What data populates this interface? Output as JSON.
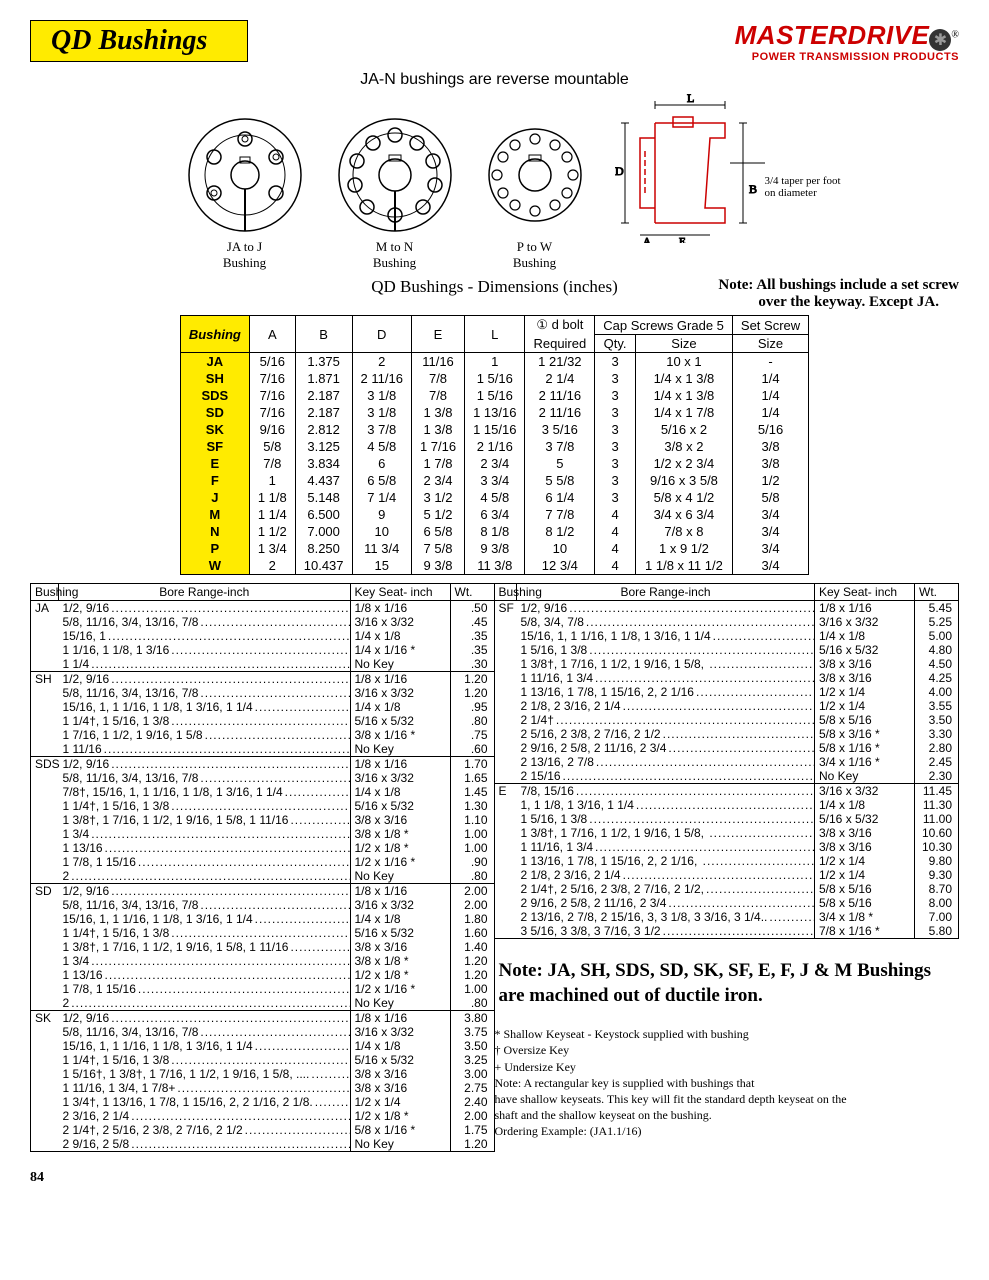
{
  "page": {
    "title": "QD Bushings",
    "number": "84"
  },
  "logo": {
    "brand": "MASTERDRIVE",
    "tagline": "POWER TRANSMISSION PRODUCTS"
  },
  "subhead": "JA-N bushings are reverse mountable",
  "diagrams": {
    "items": [
      {
        "label": "JA to J",
        "sub": "Bushing"
      },
      {
        "label": "M to N",
        "sub": "Bushing"
      },
      {
        "label": "P to W",
        "sub": "Bushing"
      }
    ],
    "taper_note": "3/4 taper per foot on diameter",
    "dim_labels": {
      "L": "L",
      "B": "B",
      "D": "D",
      "A": "A",
      "E": "E"
    }
  },
  "caption": "QD Bushings - Dimensions (inches)",
  "note_right_1": "Note: All bushings include a set screw",
  "note_right_2": "over the keyway.  Except JA.",
  "dims_header": {
    "bushing": "Bushing",
    "A": "A",
    "B": "B",
    "D": "D",
    "E": "E",
    "L": "L",
    "bolt_top": "① d bolt",
    "bolt": "Required",
    "cap": "Cap Screws Grade 5",
    "qty": "Qty.",
    "size": "Size",
    "set": "Set Screw",
    "setsize": "Size"
  },
  "dims_rows": [
    {
      "b": "JA",
      "A": "5/16",
      "B": "1.375",
      "D": "2",
      "E": "11/16",
      "L": "1",
      "bolt": "1 21/32",
      "qty": "3",
      "size": "10 x 1",
      "set": "-"
    },
    {
      "b": "SH",
      "A": "7/16",
      "B": "1.871",
      "D": "2 11/16",
      "E": "7/8",
      "L": "1 5/16",
      "bolt": "2 1/4",
      "qty": "3",
      "size": "1/4 x 1 3/8",
      "set": "1/4"
    },
    {
      "b": "SDS",
      "A": "7/16",
      "B": "2.187",
      "D": "3 1/8",
      "E": "7/8",
      "L": "1 5/16",
      "bolt": "2 11/16",
      "qty": "3",
      "size": "1/4 x 1 3/8",
      "set": "1/4"
    },
    {
      "b": "SD",
      "A": "7/16",
      "B": "2.187",
      "D": "3 1/8",
      "E": "1 3/8",
      "L": "1 13/16",
      "bolt": "2 11/16",
      "qty": "3",
      "size": "1/4 x 1 7/8",
      "set": "1/4"
    },
    {
      "b": "SK",
      "A": "9/16",
      "B": "2.812",
      "D": "3 7/8",
      "E": "1 3/8",
      "L": "1 15/16",
      "bolt": "3 5/16",
      "qty": "3",
      "size": "5/16 x 2",
      "set": "5/16"
    },
    {
      "b": "SF",
      "A": "5/8",
      "B": "3.125",
      "D": "4 5/8",
      "E": "1 7/16",
      "L": "2 1/16",
      "bolt": "3 7/8",
      "qty": "3",
      "size": "3/8 x 2",
      "set": "3/8"
    },
    {
      "b": "E",
      "A": "7/8",
      "B": "3.834",
      "D": "6",
      "E": "1 7/8",
      "L": "2 3/4",
      "bolt": "5",
      "qty": "3",
      "size": "1/2 x 2 3/4",
      "set": "3/8"
    },
    {
      "b": "F",
      "A": "1",
      "B": "4.437",
      "D": "6 5/8",
      "E": "2 3/4",
      "L": "3 3/4",
      "bolt": "5 5/8",
      "qty": "3",
      "size": "9/16 x 3 5/8",
      "set": "1/2"
    },
    {
      "b": "J",
      "A": "1 1/8",
      "B": "5.148",
      "D": "7 1/4",
      "E": "3 1/2",
      "L": "4 5/8",
      "bolt": "6 1/4",
      "qty": "3",
      "size": "5/8 x 4 1/2",
      "set": "5/8"
    },
    {
      "b": "M",
      "A": "1 1/4",
      "B": "6.500",
      "D": "9",
      "E": "5 1/2",
      "L": "6 3/4",
      "bolt": "7 7/8",
      "qty": "4",
      "size": "3/4 x 6 3/4",
      "set": "3/4"
    },
    {
      "b": "N",
      "A": "1 1/2",
      "B": "7.000",
      "D": "10",
      "E": "6 5/8",
      "L": "8 1/8",
      "bolt": "8 1/2",
      "qty": "4",
      "size": "7/8 x 8",
      "set": "3/4"
    },
    {
      "b": "P",
      "A": "1 3/4",
      "B": "8.250",
      "D": "11 3/4",
      "E": "7 5/8",
      "L": "9 3/8",
      "bolt": "10",
      "qty": "4",
      "size": "1 x 9 1/2",
      "set": "3/4"
    },
    {
      "b": "W",
      "A": "2",
      "B": "10.437",
      "D": "15",
      "E": "9 3/8",
      "L": "11 3/8",
      "bolt": "12 3/4",
      "qty": "4",
      "size": "1 1/8 x 11 1/2",
      "set": "3/4"
    }
  ],
  "bore_header": {
    "bushing": "Bushing",
    "bore": "Bore Range-inch",
    "key": "Key Seat- inch",
    "wt": "Wt."
  },
  "bore_left": [
    {
      "id": "JA",
      "rows": [
        {
          "bore": "1/2, 9/16",
          "key": "1/8  x  1/16",
          "wt": ".50"
        },
        {
          "bore": "5/8, 11/16, 3/4, 13/16, 7/8",
          "key": "3/16  x  3/32",
          "wt": ".45"
        },
        {
          "bore": "15/16, 1",
          "key": "1/4  x  1/8",
          "wt": ".35"
        },
        {
          "bore": "1 1/16, 1 1/8, 1 3/16",
          "key": "1/4  x  1/16  *",
          "wt": ".35"
        },
        {
          "bore": "1 1/4",
          "key": "No Key",
          "wt": ".30"
        }
      ]
    },
    {
      "id": "SH",
      "rows": [
        {
          "bore": "1/2, 9/16",
          "key": "1/8  x  1/16",
          "wt": "1.20"
        },
        {
          "bore": "5/8, 11/16, 3/4, 13/16, 7/8",
          "key": "3/16  x  3/32",
          "wt": "1.20"
        },
        {
          "bore": "15/16, 1, 1 1/16, 1 1/8, 1 3/16, 1 1/4",
          "key": "1/4  x  1/8",
          "wt": ".95"
        },
        {
          "bore": "1 1/4†, 1 5/16, 1 3/8",
          "key": "5/16  x  5/32",
          "wt": ".80"
        },
        {
          "bore": "1 7/16, 1 1/2, 1 9/16, 1 5/8",
          "key": "3/8  x  1/16  *",
          "wt": ".75"
        },
        {
          "bore": "1 11/16",
          "key": "No Key",
          "wt": ".60"
        }
      ]
    },
    {
      "id": "SDS",
      "rows": [
        {
          "bore": "1/2, 9/16",
          "key": "1/8  x  1/16",
          "wt": "1.70"
        },
        {
          "bore": "5/8, 11/16, 3/4, 13/16, 7/8",
          "key": "3/16  x  3/32",
          "wt": "1.65"
        },
        {
          "bore": "7/8†, 15/16, 1, 1 1/16, 1 1/8, 1 3/16, 1 1/4",
          "key": "1/4  x  1/8",
          "wt": "1.45"
        },
        {
          "bore": "1 1/4†, 1 5/16, 1 3/8",
          "key": "5/16  x  5/32",
          "wt": "1.30"
        },
        {
          "bore": "1 3/8†, 1 7/16, 1 1/2, 1 9/16, 1 5/8, 1 11/16",
          "key": "3/8  x  3/16",
          "wt": "1.10"
        },
        {
          "bore": "1 3/4",
          "key": "3/8  x  1/8   *",
          "wt": "1.00"
        },
        {
          "bore": "1 13/16",
          "key": "1/2  x  1/8   *",
          "wt": "1.00"
        },
        {
          "bore": "1 7/8, 1 15/16",
          "key": "1/2  x  1/16  *",
          "wt": ".90"
        },
        {
          "bore": "2",
          "key": "No Key",
          "wt": ".80"
        }
      ]
    },
    {
      "id": "SD",
      "rows": [
        {
          "bore": "1/2, 9/16",
          "key": "1/8  x  1/16",
          "wt": "2.00"
        },
        {
          "bore": "5/8, 11/16, 3/4, 13/16, 7/8",
          "key": "3/16  x  3/32",
          "wt": "2.00"
        },
        {
          "bore": "15/16, 1, 1 1/16, 1 1/8, 1 3/16, 1 1/4",
          "key": "1/4  x  1/8",
          "wt": "1.80"
        },
        {
          "bore": "1 1/4†, 1 5/16, 1 3/8",
          "key": "5/16  x  5/32",
          "wt": "1.60"
        },
        {
          "bore": "1 3/8†, 1 7/16, 1 1/2, 1 9/16, 1 5/8, 1 11/16",
          "key": "3/8  x  3/16",
          "wt": "1.40"
        },
        {
          "bore": "1 3/4",
          "key": "3/8  x  1/8   *",
          "wt": "1.20"
        },
        {
          "bore": "1 13/16",
          "key": "1/2  x  1/8   *",
          "wt": "1.20"
        },
        {
          "bore": "1 7/8, 1 15/16",
          "key": "1/2  x  1/16  *",
          "wt": "1.00"
        },
        {
          "bore": "2",
          "key": "No Key",
          "wt": ".80"
        }
      ]
    },
    {
      "id": "SK",
      "rows": [
        {
          "bore": "1/2, 9/16",
          "key": "1/8  x  1/16",
          "wt": "3.80"
        },
        {
          "bore": "5/8, 11/16, 3/4, 13/16, 7/8",
          "key": "3/16  x  3/32",
          "wt": "3.75"
        },
        {
          "bore": "15/16, 1, 1 1/16, 1 1/8, 1 3/16, 1 1/4",
          "key": "1/4  x  1/8",
          "wt": "3.50"
        },
        {
          "bore": "1 1/4†, 1 5/16, 1 3/8",
          "key": "5/16  x  5/32",
          "wt": "3.25"
        },
        {
          "bore": "1 5/16†, 1 3/8†, 1 7/16, 1 1/2, 1 9/16, 1 5/8, ....",
          "key": "3/8  x  3/16",
          "wt": "3.00"
        },
        {
          "bore": "1 11/16, 1 3/4, 1 7/8+",
          "key": "3/8  x  3/16",
          "wt": "2.75"
        },
        {
          "bore": "1 3/4†, 1 13/16, 1 7/8, 1 15/16, 2, 2 1/16, 2 1/8.",
          "key": "1/2  x  1/4",
          "wt": "2.40"
        },
        {
          "bore": "2 3/16, 2 1/4",
          "key": "1/2  x  1/8   *",
          "wt": "2.00"
        },
        {
          "bore": "2 1/4†, 2 5/16, 2 3/8, 2 7/16, 2 1/2",
          "key": "5/8  x  1/16  *",
          "wt": "1.75"
        },
        {
          "bore": "2 9/16, 2 5/8",
          "key": "No Key",
          "wt": "1.20"
        }
      ]
    }
  ],
  "bore_right": [
    {
      "id": "SF",
      "rows": [
        {
          "bore": "1/2, 9/16",
          "key": "1/8  x  1/16",
          "wt": "5.45"
        },
        {
          "bore": "5/8, 3/4, 7/8",
          "key": "3/16  x  3/32",
          "wt": "5.25"
        },
        {
          "bore": "15/16, 1, 1 1/16, 1 1/8, 1 3/16, 1 1/4",
          "key": "1/4  x  1/8",
          "wt": "5.00"
        },
        {
          "bore": "1 5/16, 1 3/8",
          "key": "5/16  x  5/32",
          "wt": "4.80"
        },
        {
          "bore": "1 3/8†, 1 7/16, 1 1/2, 1 9/16, 1 5/8, ",
          "key": "3/8  x  3/16",
          "wt": "4.50"
        },
        {
          "bore": "1 11/16, 1 3/4",
          "key": "3/8  x  3/16",
          "wt": "4.25"
        },
        {
          "bore": "1 13/16, 1 7/8, 1 15/16, 2, 2 1/16",
          "key": "1/2  x  1/4",
          "wt": "4.00"
        },
        {
          "bore": "2 1/8, 2 3/16, 2 1/4",
          "key": "1/2  x  1/4",
          "wt": "3.55"
        },
        {
          "bore": "2 1/4†",
          "key": "5/8  x  5/16",
          "wt": "3.50"
        },
        {
          "bore": "2 5/16, 2 3/8, 2 7/16, 2 1/2",
          "key": "5/8  x  3/16  *",
          "wt": "3.30"
        },
        {
          "bore": "2 9/16, 2 5/8, 2 11/16, 2 3/4",
          "key": "5/8  x  1/16  *",
          "wt": "2.80"
        },
        {
          "bore": "2 13/16, 2 7/8",
          "key": "3/4  x  1/16  *",
          "wt": "2.45"
        },
        {
          "bore": "2 15/16",
          "key": "No Key",
          "wt": "2.30"
        }
      ]
    },
    {
      "id": "E",
      "rows": [
        {
          "bore": "7/8, 15/16",
          "key": "3/16  x  3/32",
          "wt": "11.45"
        },
        {
          "bore": "1, 1 1/8, 1 3/16, 1 1/4",
          "key": "1/4  x  1/8",
          "wt": "11.30"
        },
        {
          "bore": "1 5/16, 1 3/8",
          "key": "5/16  x  5/32",
          "wt": "11.00"
        },
        {
          "bore": "1 3/8†, 1 7/16, 1 1/2, 1 9/16, 1 5/8, ",
          "key": "3/8  x  3/16",
          "wt": "10.60"
        },
        {
          "bore": "1 11/16, 1 3/4",
          "key": "3/8  x  3/16",
          "wt": "10.30"
        },
        {
          "bore": "1 13/16, 1 7/8, 1 15/16, 2, 2 1/16, ",
          "key": "1/2  x  1/4",
          "wt": "9.80"
        },
        {
          "bore": "2 1/8, 2 3/16, 2 1/4",
          "key": "1/2  x  1/4",
          "wt": "9.30"
        },
        {
          "bore": "2 1/4†, 2 5/16, 2 3/8, 2 7/16, 2 1/2,",
          "key": "5/8  x  5/16",
          "wt": "8.70"
        },
        {
          "bore": "2 9/16, 2 5/8, 2 11/16, 2 3/4",
          "key": "5/8  x  5/16",
          "wt": "8.00"
        },
        {
          "bore": "2 13/16, 2 7/8, 2 15/16, 3, 3 1/8, 3 3/16, 3 1/4..",
          "key": "3/4  x  1/8   *",
          "wt": "7.00"
        },
        {
          "bore": "3 5/16, 3 3/8, 3 7/16, 3 1/2",
          "key": "7/8  x  1/16  *",
          "wt": "5.80"
        }
      ]
    }
  ],
  "bottom_note": "Note: JA, SH, SDS, SD, SK, SF, E, F, J & M Bushings are machined out of ductile iron.",
  "footnotes": [
    "*  Shallow Keyseat - Keystock supplied with bushing",
    "†  Oversize Key",
    "+  Undersize Key",
    "Note:      A rectangular key is supplied with bushings that",
    "have shallow keyseats.  This key will fit the standard depth keyseat on the",
    "shaft and the shallow keyseat on  the bushing.",
    "Ordering Example:    (JA1.1/16)"
  ]
}
